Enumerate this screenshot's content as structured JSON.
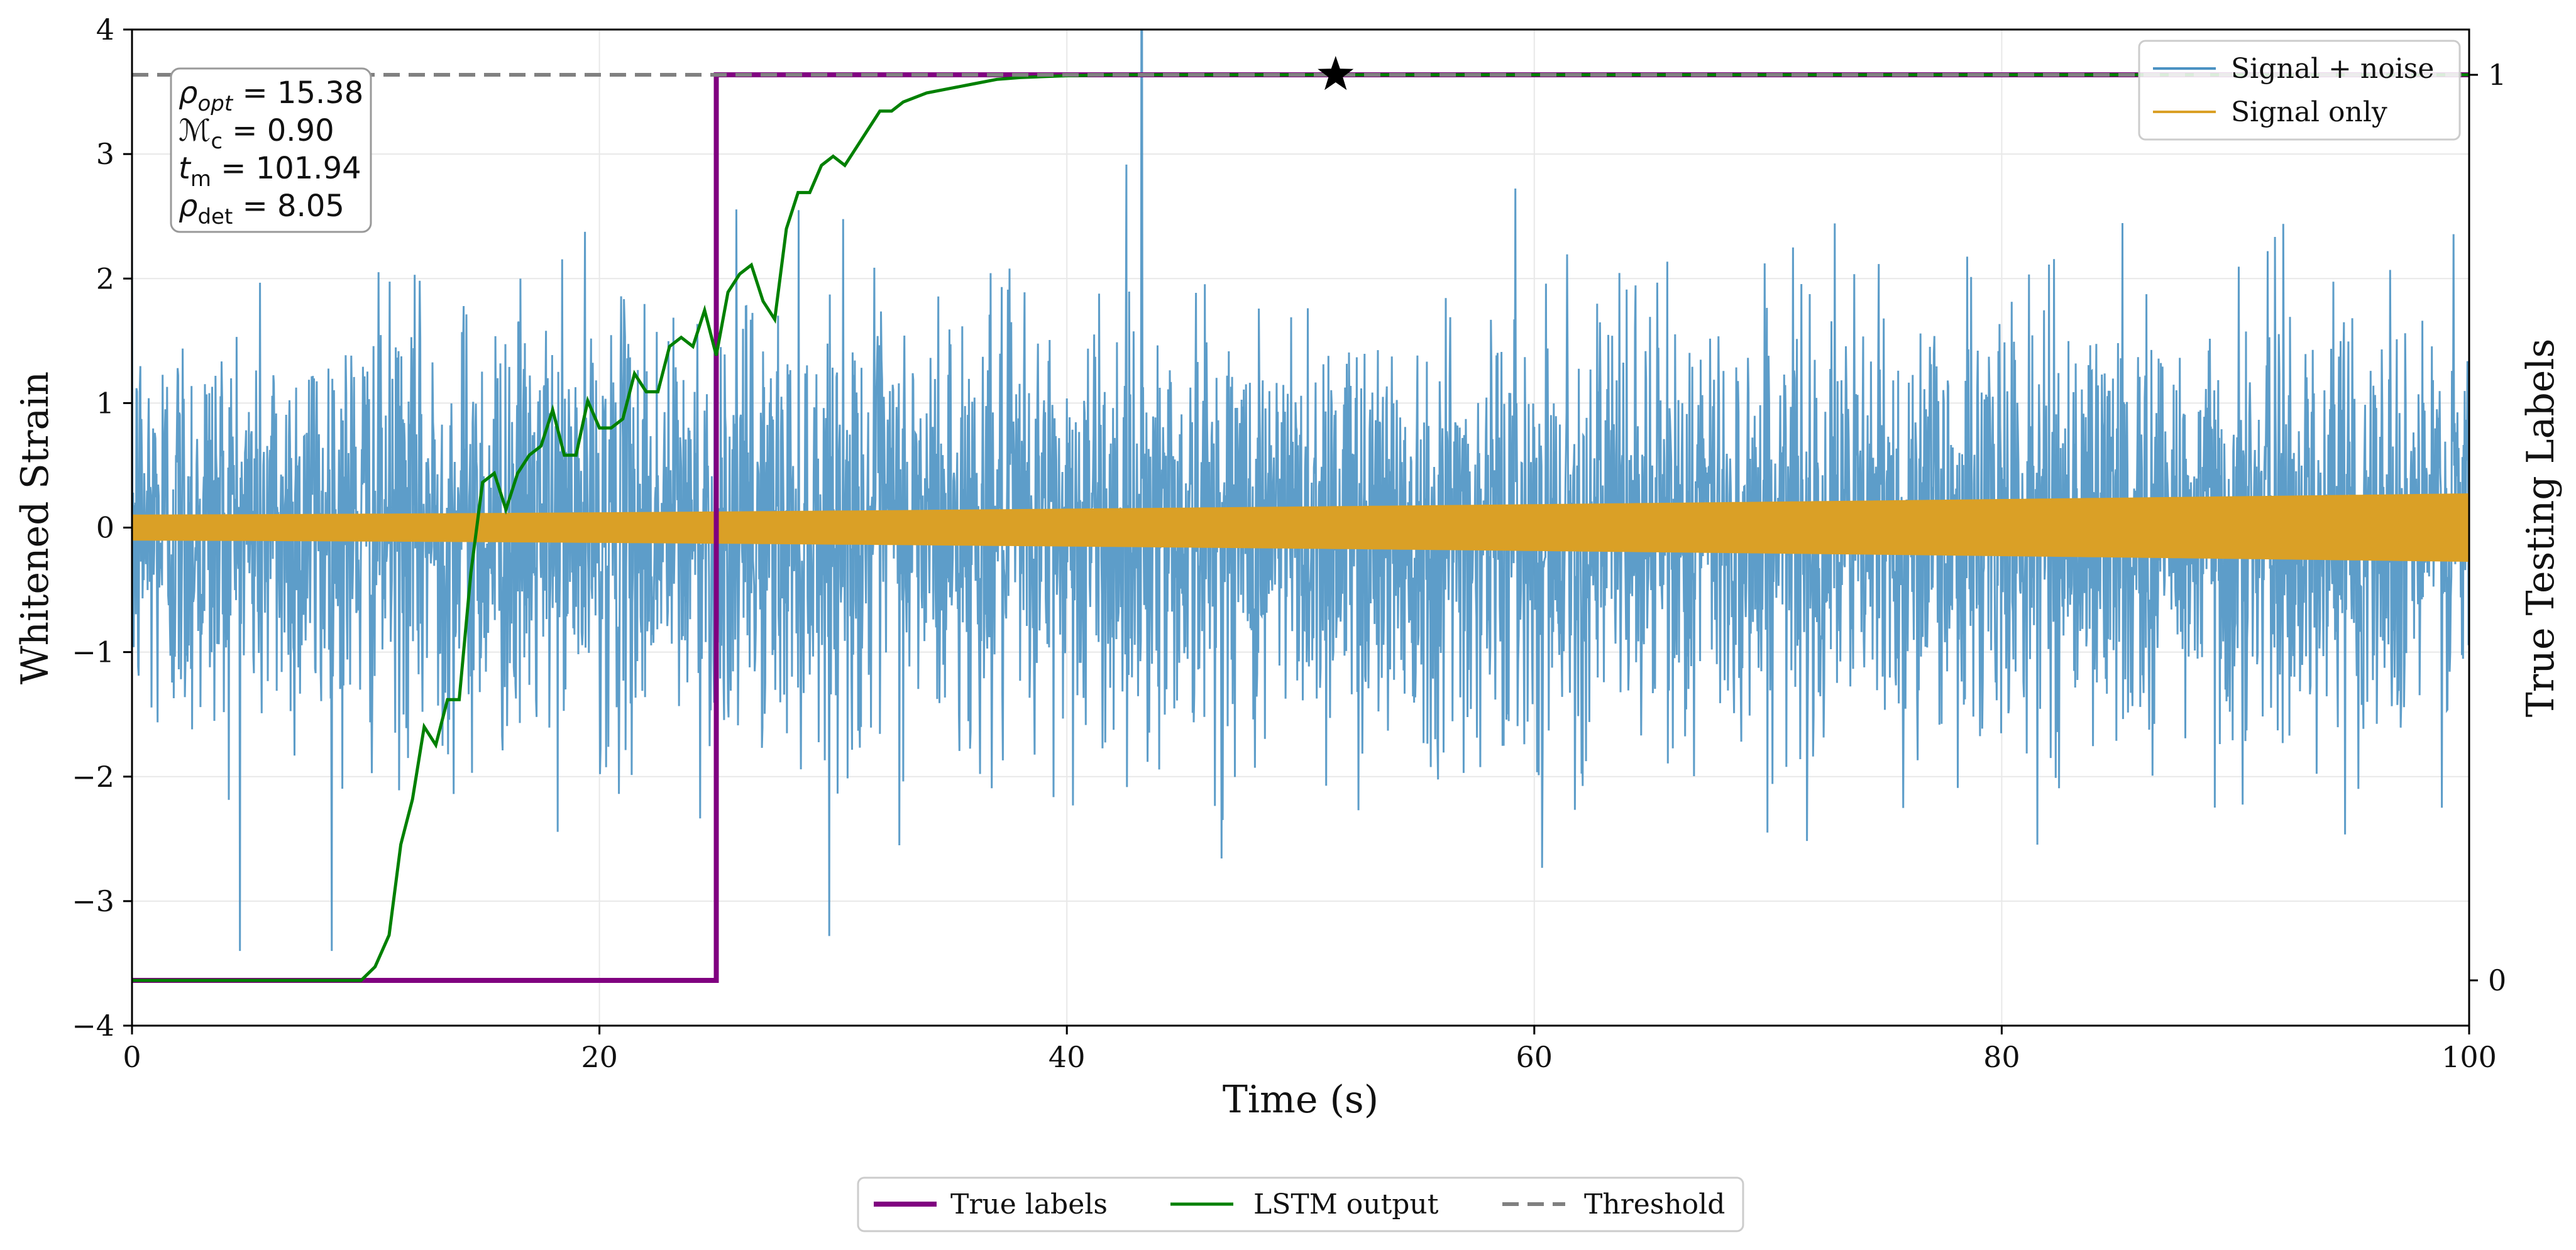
{
  "chart_data": {
    "type": "line",
    "xlabel": "Time (s)",
    "ylabel": "Whitened Strain",
    "y2label": "True Testing Labels",
    "xlim": [
      0,
      100
    ],
    "ylim": [
      -4,
      4
    ],
    "y2lim": [
      -0.05,
      1.05
    ],
    "grid": true,
    "x_ticks": [
      0,
      20,
      40,
      60,
      80,
      100
    ],
    "x_tick_labels": [
      "0",
      "20",
      "40",
      "60",
      "80",
      "100"
    ],
    "y_ticks": [
      -4,
      -3,
      -2,
      -1,
      0,
      1,
      2,
      3,
      4
    ],
    "y_tick_labels": [
      "−4",
      "−3",
      "−2",
      "−1",
      "0",
      "1",
      "2",
      "3",
      "4"
    ],
    "y2_ticks": [
      0,
      1
    ],
    "y2_tick_labels": [
      "0",
      "1"
    ],
    "colors": {
      "signal_noise": "#4b92c3",
      "signal_only": "#daa026",
      "true_labels": "#800080",
      "lstm": "#008000",
      "threshold": "#808080",
      "marker": "#000000"
    },
    "series": [
      {
        "name": "Signal + noise",
        "axis": "left",
        "description_values": "white-noise envelope, amplitude mostly within ±2.5",
        "envelope_mean": 0.0,
        "envelope_sigma": 0.85,
        "spike_x": 43.2,
        "spike_y": 4.0
      },
      {
        "name": "Signal only",
        "axis": "left",
        "amplitude_start": 0.1,
        "amplitude_end": 0.27
      },
      {
        "name": "True labels",
        "axis": "right",
        "x": [
          0,
          25,
          25,
          100
        ],
        "y": [
          0,
          0,
          1,
          1
        ]
      },
      {
        "name": "LSTM output",
        "axis": "right",
        "x": [
          0,
          9.8,
          10.4,
          11.0,
          11.5,
          12.0,
          12.5,
          13.0,
          13.5,
          14.0,
          14.5,
          15.0,
          15.5,
          16.0,
          16.5,
          17.0,
          17.5,
          18.0,
          18.5,
          19.0,
          19.5,
          20.0,
          20.5,
          21.0,
          21.5,
          22.0,
          22.5,
          23.0,
          23.5,
          24.0,
          24.5,
          25.0,
          25.5,
          26.0,
          26.5,
          27.0,
          27.5,
          28.0,
          28.5,
          29.0,
          29.5,
          30.0,
          30.5,
          31.0,
          31.5,
          32.0,
          32.5,
          33.0,
          34.0,
          35.0,
          36.0,
          37.0,
          38.0,
          39.0,
          40.0,
          42.0,
          45.0,
          50.0,
          100.0
        ],
        "y": [
          0.0,
          0.0,
          0.015,
          0.05,
          0.15,
          0.2,
          0.28,
          0.26,
          0.31,
          0.31,
          0.45,
          0.55,
          0.56,
          0.52,
          0.56,
          0.58,
          0.59,
          0.63,
          0.58,
          0.58,
          0.64,
          0.61,
          0.61,
          0.62,
          0.67,
          0.65,
          0.65,
          0.7,
          0.71,
          0.7,
          0.74,
          0.69,
          0.76,
          0.78,
          0.79,
          0.75,
          0.73,
          0.83,
          0.87,
          0.87,
          0.9,
          0.91,
          0.9,
          0.92,
          0.94,
          0.96,
          0.96,
          0.97,
          0.98,
          0.985,
          0.99,
          0.995,
          0.997,
          0.998,
          0.999,
          1.0,
          1.0,
          1.0,
          1.0
        ]
      },
      {
        "name": "Threshold",
        "axis": "right",
        "y": 1.0
      }
    ],
    "marker": {
      "shape": "star",
      "x": 51.5,
      "y": 1.0
    },
    "legend_top": [
      "Signal + noise",
      "Signal only"
    ],
    "legend_top_placement": "top-right",
    "legend_bottom": [
      "True labels",
      "LSTM output",
      "Threshold"
    ],
    "legend_bottom_placement": "bottom-center",
    "annotation": {
      "lines": [
        {
          "sym": "ρ",
          "sub": "opt",
          "value": " = 15.38"
        },
        {
          "sym": "ℳ",
          "sub": "c",
          "value": " = 0.90"
        },
        {
          "sym": "t",
          "sub": "m",
          "value": " = 101.94"
        },
        {
          "sym": "ρ",
          "sub": "det",
          "value": " = 8.05"
        }
      ],
      "placement": "top-left"
    }
  }
}
